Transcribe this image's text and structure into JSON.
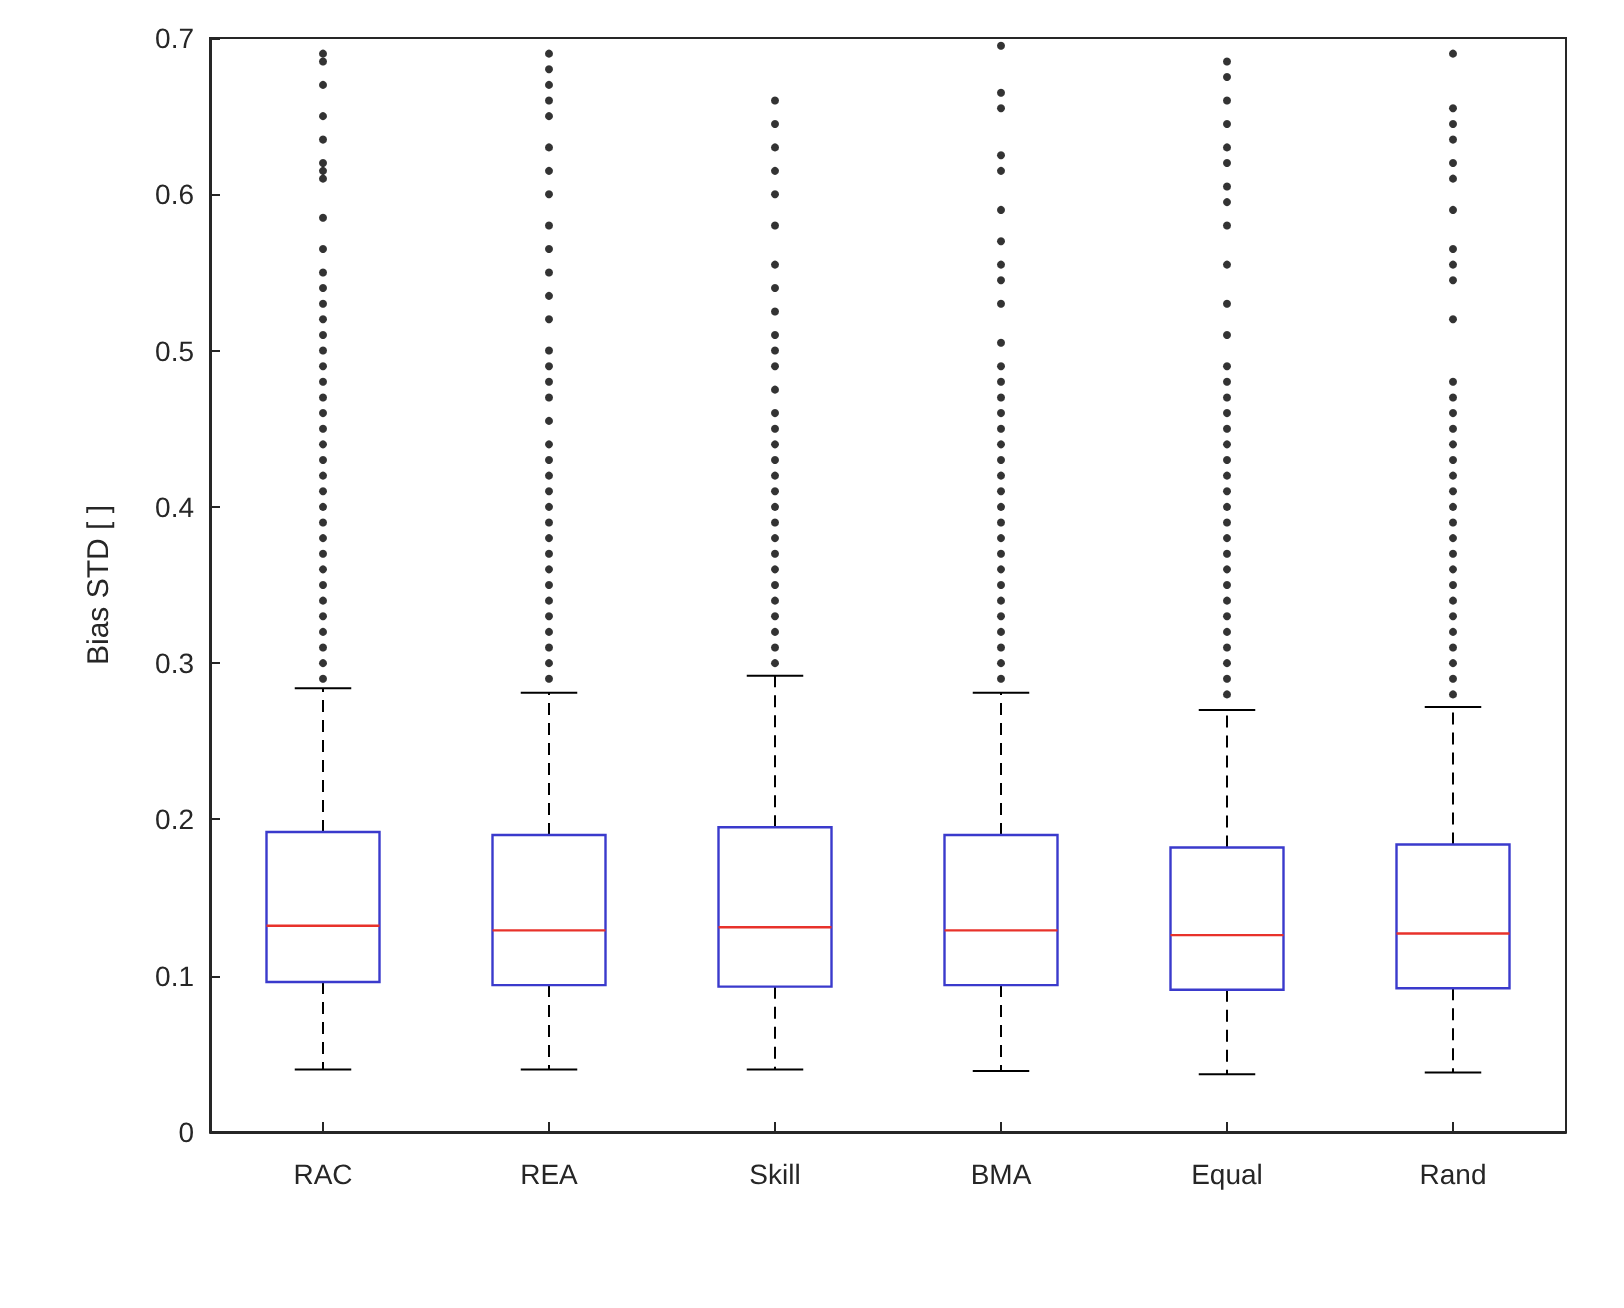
{
  "chart_data": {
    "type": "box",
    "ylabel": "Bias STD [ ]",
    "categories": [
      "RAC",
      "REA",
      "Skill",
      "BMA",
      "Equal",
      "Rand"
    ],
    "color": "#3a3acc",
    "grid": false,
    "ylim": [
      0,
      0.7
    ],
    "yticks": [
      0,
      0.1,
      0.2,
      0.3,
      0.4,
      0.5,
      0.6,
      0.7
    ],
    "boxes": [
      {
        "low": 0.04,
        "q1": 0.096,
        "median": 0.132,
        "q3": 0.192,
        "high": 0.284,
        "outliers": [
          0.29,
          0.3,
          0.31,
          0.32,
          0.33,
          0.34,
          0.35,
          0.36,
          0.37,
          0.38,
          0.39,
          0.4,
          0.41,
          0.42,
          0.43,
          0.44,
          0.45,
          0.46,
          0.47,
          0.48,
          0.49,
          0.5,
          0.51,
          0.52,
          0.53,
          0.54,
          0.55,
          0.565,
          0.585,
          0.61,
          0.615,
          0.62,
          0.635,
          0.65,
          0.67,
          0.685,
          0.69
        ]
      },
      {
        "low": 0.04,
        "q1": 0.094,
        "median": 0.129,
        "q3": 0.19,
        "high": 0.281,
        "outliers": [
          0.29,
          0.3,
          0.31,
          0.32,
          0.33,
          0.34,
          0.35,
          0.36,
          0.37,
          0.38,
          0.39,
          0.4,
          0.41,
          0.42,
          0.43,
          0.44,
          0.455,
          0.47,
          0.48,
          0.49,
          0.5,
          0.52,
          0.535,
          0.55,
          0.565,
          0.58,
          0.6,
          0.615,
          0.63,
          0.65,
          0.66,
          0.67,
          0.68,
          0.69
        ]
      },
      {
        "low": 0.04,
        "q1": 0.093,
        "median": 0.131,
        "q3": 0.195,
        "high": 0.292,
        "outliers": [
          0.3,
          0.31,
          0.32,
          0.33,
          0.34,
          0.35,
          0.36,
          0.37,
          0.38,
          0.39,
          0.4,
          0.41,
          0.42,
          0.43,
          0.44,
          0.45,
          0.46,
          0.475,
          0.49,
          0.5,
          0.51,
          0.525,
          0.54,
          0.555,
          0.58,
          0.6,
          0.615,
          0.63,
          0.645,
          0.66
        ]
      },
      {
        "low": 0.039,
        "q1": 0.094,
        "median": 0.129,
        "q3": 0.19,
        "high": 0.281,
        "outliers": [
          0.29,
          0.3,
          0.31,
          0.32,
          0.33,
          0.34,
          0.35,
          0.36,
          0.37,
          0.38,
          0.39,
          0.4,
          0.41,
          0.42,
          0.43,
          0.44,
          0.45,
          0.46,
          0.47,
          0.48,
          0.49,
          0.505,
          0.53,
          0.545,
          0.555,
          0.57,
          0.59,
          0.615,
          0.625,
          0.655,
          0.665,
          0.695
        ]
      },
      {
        "low": 0.037,
        "q1": 0.091,
        "median": 0.126,
        "q3": 0.182,
        "high": 0.27,
        "outliers": [
          0.28,
          0.29,
          0.3,
          0.31,
          0.32,
          0.33,
          0.34,
          0.35,
          0.36,
          0.37,
          0.38,
          0.39,
          0.4,
          0.41,
          0.42,
          0.43,
          0.44,
          0.45,
          0.46,
          0.47,
          0.48,
          0.49,
          0.51,
          0.53,
          0.555,
          0.58,
          0.595,
          0.605,
          0.62,
          0.63,
          0.645,
          0.66,
          0.675,
          0.685
        ]
      },
      {
        "low": 0.038,
        "q1": 0.092,
        "median": 0.127,
        "q3": 0.184,
        "high": 0.272,
        "outliers": [
          0.28,
          0.29,
          0.3,
          0.31,
          0.32,
          0.33,
          0.34,
          0.35,
          0.36,
          0.37,
          0.38,
          0.39,
          0.4,
          0.41,
          0.42,
          0.43,
          0.44,
          0.45,
          0.46,
          0.47,
          0.48,
          0.52,
          0.545,
          0.555,
          0.565,
          0.59,
          0.61,
          0.62,
          0.635,
          0.645,
          0.655,
          0.69
        ]
      }
    ]
  }
}
